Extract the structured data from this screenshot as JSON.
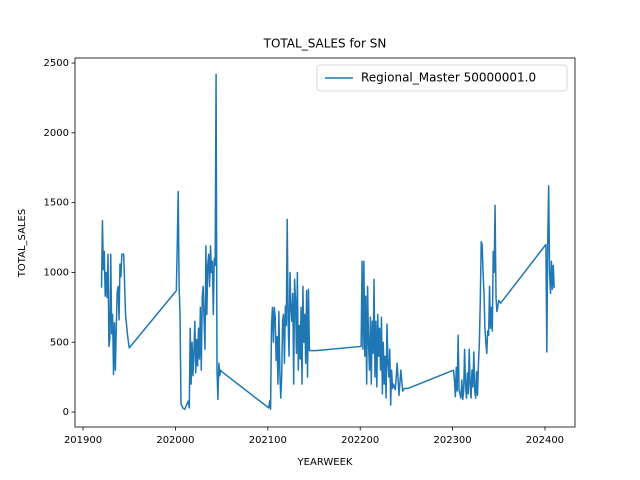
{
  "chart_data": {
    "type": "line",
    "title": "TOTAL_SALES for SN",
    "x_label": "YEARWEEK",
    "y_label": "TOTAL_SALES",
    "legend": "upper right",
    "grid": false,
    "xlim": [
      201891.3,
      202432.5
    ],
    "ylim": [
      -107,
      2536
    ],
    "xticks": [
      201900,
      202000,
      202100,
      202200,
      202300,
      202400
    ],
    "yticks": [
      0,
      500,
      1000,
      1500,
      2000,
      2500
    ],
    "x": [
      201920,
      201921,
      201922,
      201923,
      201924,
      201925,
      201926,
      201927,
      201928,
      201929,
      201930,
      201931,
      201932,
      201933,
      201934,
      201935,
      201936,
      201937,
      201938,
      201939,
      201940,
      201941,
      201942,
      201944,
      201946,
      201948,
      201950,
      202001,
      202002,
      202003,
      202004,
      202005,
      202006,
      202008,
      202010,
      202012,
      202014,
      202015,
      202016,
      202017,
      202018,
      202019,
      202020,
      202021,
      202022,
      202023,
      202024,
      202025,
      202026,
      202027,
      202028,
      202029,
      202030,
      202031,
      202032,
      202033,
      202034,
      202035,
      202036,
      202037,
      202038,
      202039,
      202040,
      202041,
      202042,
      202043,
      202044,
      202045,
      202046,
      202047,
      202048,
      202049,
      202050,
      202101,
      202102,
      202103,
      202104,
      202105,
      202106,
      202107,
      202108,
      202109,
      202110,
      202111,
      202112,
      202113,
      202114,
      202115,
      202116,
      202117,
      202118,
      202119,
      202120,
      202121,
      202122,
      202123,
      202124,
      202125,
      202126,
      202127,
      202128,
      202129,
      202130,
      202131,
      202132,
      202133,
      202134,
      202135,
      202136,
      202137,
      202138,
      202139,
      202140,
      202141,
      202142,
      202143,
      202144,
      202145,
      202152,
      202201,
      202202,
      202203,
      202204,
      202205,
      202206,
      202207,
      202208,
      202209,
      202210,
      202211,
      202212,
      202213,
      202214,
      202215,
      202216,
      202217,
      202218,
      202219,
      202220,
      202221,
      202222,
      202223,
      202224,
      202225,
      202226,
      202227,
      202228,
      202229,
      202230,
      202231,
      202232,
      202233,
      202234,
      202235,
      202236,
      202238,
      202240,
      202242,
      202244,
      202246,
      202248,
      202252,
      202301,
      202302,
      202303,
      202304,
      202305,
      202306,
      202307,
      202308,
      202309,
      202310,
      202311,
      202312,
      202313,
      202314,
      202315,
      202316,
      202317,
      202318,
      202319,
      202320,
      202321,
      202322,
      202323,
      202324,
      202325,
      202326,
      202327,
      202328,
      202329,
      202330,
      202331,
      202332,
      202333,
      202334,
      202335,
      202336,
      202337,
      202338,
      202339,
      202340,
      202341,
      202342,
      202343,
      202344,
      202345,
      202346,
      202347,
      202348,
      202350,
      202352,
      202401,
      202402,
      202403,
      202404,
      202405,
      202406,
      202407,
      202408,
      202409,
      202410
    ],
    "series": [
      {
        "name": "Regional_Master 50000001.0",
        "color": "#1f77b4",
        "values": [
          890,
          1370,
          1020,
          1150,
          830,
          1000,
          820,
          1130,
          470,
          520,
          1130,
          560,
          700,
          270,
          640,
          300,
          620,
          860,
          900,
          660,
          1060,
          970,
          1130,
          1130,
          700,
          560,
          460,
          870,
          1200,
          1580,
          900,
          700,
          60,
          30,
          20,
          50,
          80,
          30,
          600,
          200,
          500,
          260,
          430,
          650,
          280,
          520,
          330,
          600,
          380,
          750,
          300,
          820,
          900,
          660,
          450,
          1190,
          700,
          1050,
          1130,
          900,
          1190,
          1000,
          1080,
          700,
          1100,
          1050,
          2420,
          300,
          90,
          350,
          260,
          300,
          290,
          30,
          80,
          20,
          620,
          750,
          500,
          750,
          680,
          370,
          540,
          200,
          720,
          300,
          100,
          250,
          650,
          700,
          350,
          760,
          620,
          1380,
          650,
          400,
          1000,
          750,
          650,
          850,
          200,
          950,
          800,
          420,
          1000,
          300,
          620,
          380,
          750,
          200,
          900,
          500,
          700,
          350,
          870,
          250,
          880,
          440,
          440,
          470,
          1080,
          450,
          1080,
          400,
          830,
          200,
          900,
          500,
          300,
          680,
          200,
          650,
          420,
          950,
          250,
          650,
          180,
          700,
          400,
          600,
          300,
          680,
          130,
          500,
          200,
          400,
          100,
          630,
          350,
          250,
          450,
          50,
          300,
          170,
          200,
          160,
          350,
          120,
          300,
          150,
          170,
          170,
          300,
          230,
          110,
          320,
          150,
          550,
          160,
          130,
          100,
          230,
          90,
          150,
          450,
          200,
          100,
          280,
          130,
          450,
          200,
          100,
          300,
          180,
          430,
          150,
          100,
          290,
          120,
          350,
          500,
          800,
          1220,
          1200,
          1000,
          850,
          600,
          500,
          420,
          580,
          550,
          900,
          600,
          750,
          580,
          1150,
          1000,
          1480,
          820,
          720,
          800,
          780,
          1200,
          430,
          1230,
          1620,
          1000,
          850,
          1080,
          880,
          1050,
          890
        ]
      }
    ]
  }
}
